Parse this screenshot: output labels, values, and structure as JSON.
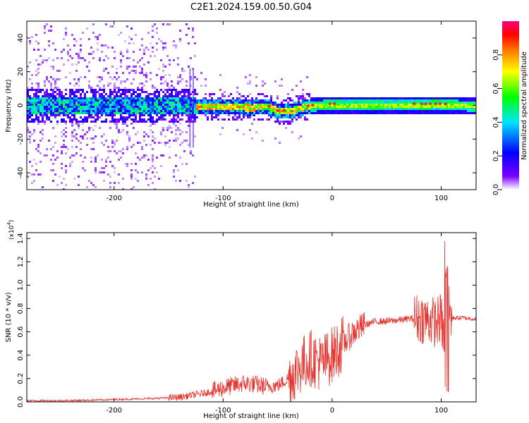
{
  "title": "C2E1.2024.159.00.50.G04",
  "chart_data": [
    {
      "type": "heatmap",
      "xlabel": "Height of straight line (km)",
      "ylabel": "Frequency (Hz)",
      "xlim": [
        -280,
        132
      ],
      "ylim": [
        -50,
        50
      ],
      "xticks": [
        -200,
        -100,
        0,
        100
      ],
      "yticks": [
        -40,
        -20,
        0,
        20,
        40
      ],
      "colorbar": {
        "label": "Normalized spectral amplitude",
        "range": [
          0.0,
          1.0
        ],
        "ticks": [
          "0.0",
          "0.2",
          "0.4",
          "0.6",
          "0.8"
        ],
        "colormap": [
          "#ffffff",
          "#7a00ff",
          "#0000ff",
          "#00e5ff",
          "#00ff00",
          "#ffff00",
          "#ff8000",
          "#ff0000",
          "#ff0080"
        ]
      },
      "band_center_track": [
        [
          -280,
          0
        ],
        [
          -200,
          0
        ],
        [
          -130,
          0
        ],
        [
          -100,
          0
        ],
        [
          -75,
          -1
        ],
        [
          -60,
          0
        ],
        [
          -50,
          -3
        ],
        [
          -40,
          -3
        ],
        [
          -30,
          -1
        ],
        [
          -20,
          0
        ],
        [
          0,
          1
        ],
        [
          40,
          1
        ],
        [
          80,
          1
        ],
        [
          100,
          1
        ],
        [
          132,
          0
        ]
      ]
    },
    {
      "type": "line",
      "xlabel": "Height of straight line (km)",
      "ylabel": "SNR (10 * v/v)",
      "y_multiplier": "(x10^4)",
      "xlim": [
        -280,
        132
      ],
      "ylim": [
        0,
        1.45
      ],
      "xticks": [
        -200,
        -100,
        0,
        100
      ],
      "yticks": [
        "0.0",
        "0.2",
        "0.4",
        "0.6",
        "0.8",
        "1.0",
        "1.2",
        "1.4"
      ],
      "color": "#e8322d",
      "series": [
        {
          "x": [
            -280,
            -250,
            -220,
            -200,
            -180,
            -160,
            -140,
            -120,
            -110,
            -100,
            -90,
            -80,
            -70,
            -60,
            -50,
            -40,
            -30,
            -20,
            -10,
            0,
            10,
            20,
            30,
            40,
            50,
            60,
            70,
            80,
            90,
            95,
            100,
            103,
            106,
            110,
            120,
            132
          ],
          "y": [
            0.01,
            0.01,
            0.015,
            0.02,
            0.025,
            0.03,
            0.04,
            0.07,
            0.09,
            0.12,
            0.14,
            0.16,
            0.15,
            0.13,
            0.14,
            0.2,
            0.3,
            0.38,
            0.33,
            0.4,
            0.5,
            0.6,
            0.66,
            0.69,
            0.69,
            0.7,
            0.71,
            0.72,
            0.7,
            0.68,
            0.72,
            0.5,
            0.8,
            0.72,
            0.72,
            0.71
          ]
        }
      ]
    }
  ]
}
